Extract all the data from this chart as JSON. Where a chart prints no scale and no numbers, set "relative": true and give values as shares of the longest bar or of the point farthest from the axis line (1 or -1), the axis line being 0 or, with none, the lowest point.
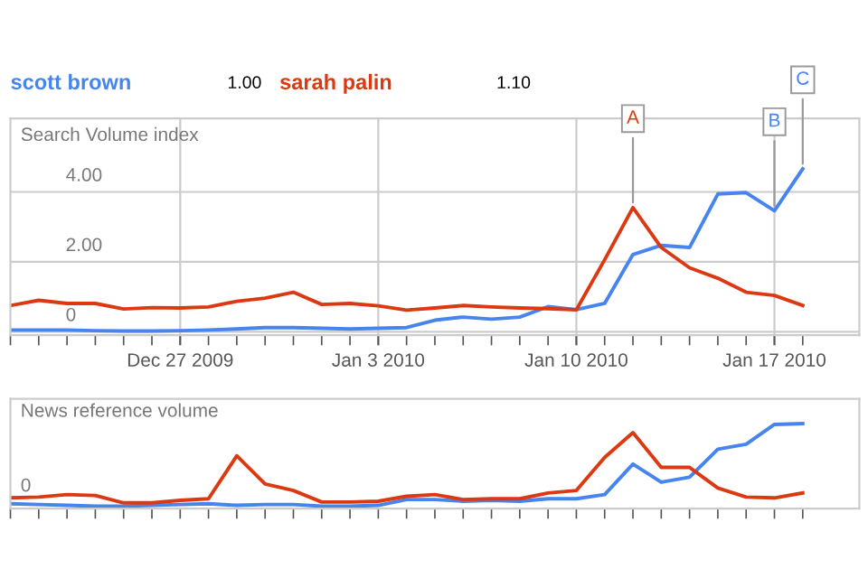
{
  "chart_data": [
    {
      "type": "line",
      "ylabel": "Search Volume index",
      "x": [
        "2009-12-21",
        "2009-12-22",
        "2009-12-23",
        "2009-12-24",
        "2009-12-25",
        "2009-12-26",
        "2009-12-27",
        "2009-12-28",
        "2009-12-29",
        "2009-12-30",
        "2009-12-31",
        "2010-01-01",
        "2010-01-02",
        "2010-01-03",
        "2010-01-04",
        "2010-01-05",
        "2010-01-06",
        "2010-01-07",
        "2010-01-08",
        "2010-01-09",
        "2010-01-10",
        "2010-01-11",
        "2010-01-12",
        "2010-01-13",
        "2010-01-14",
        "2010-01-15",
        "2010-01-16",
        "2010-01-17",
        "2010-01-18"
      ],
      "series": [
        {
          "name": "scott brown",
          "color": "#4684ee",
          "values": [
            0.05,
            0.05,
            0.05,
            0.03,
            0.02,
            0.02,
            0.03,
            0.05,
            0.08,
            0.12,
            0.12,
            0.1,
            0.08,
            0.1,
            0.12,
            0.33,
            0.42,
            0.36,
            0.42,
            0.72,
            0.63,
            0.81,
            2.21,
            2.47,
            2.41,
            3.94,
            3.98,
            3.46,
            4.66
          ]
        },
        {
          "name": "sarah palin",
          "color": "#dc3912",
          "values": [
            0.75,
            0.9,
            0.81,
            0.81,
            0.65,
            0.69,
            0.68,
            0.71,
            0.87,
            0.96,
            1.13,
            0.78,
            0.81,
            0.74,
            0.62,
            0.68,
            0.75,
            0.71,
            0.68,
            0.66,
            0.63,
            2.06,
            3.55,
            2.41,
            1.83,
            1.53,
            1.13,
            1.04,
            0.75
          ]
        }
      ],
      "annotations": [
        "1.00",
        "1.10",
        {
          "text": "A",
          "x": "2010-01-12",
          "y": 3.55
        },
        {
          "text": "B",
          "x": "2010-01-17",
          "y": 3.46
        },
        {
          "text": "C",
          "x": "2010-01-18",
          "y": 4.66
        }
      ],
      "xlim": [
        "2009-12-21",
        "2010-01-20"
      ],
      "xticks": [
        {
          "value": "2009-12-27",
          "label": "Dec 27 2009"
        },
        {
          "value": "2010-01-03",
          "label": "Jan 3 2010"
        },
        {
          "value": "2010-01-10",
          "label": "Jan 10 2010"
        },
        {
          "value": "2010-01-17",
          "label": "Jan 17 2010"
        }
      ],
      "ylim": [
        -0.1,
        6.1
      ],
      "yticks": [
        {
          "value": 0,
          "label": "0"
        },
        {
          "value": 2,
          "label": "2.00"
        },
        {
          "value": 4,
          "label": "4.00"
        }
      ],
      "grid": true,
      "legend": "top left",
      "marker": "none",
      "line_style": "solid"
    },
    {
      "type": "line",
      "ylabel": "News reference volume",
      "relative": true,
      "x": [
        "2009-12-21",
        "2009-12-22",
        "2009-12-23",
        "2009-12-24",
        "2009-12-25",
        "2009-12-26",
        "2009-12-27",
        "2009-12-28",
        "2009-12-29",
        "2009-12-30",
        "2009-12-31",
        "2010-01-01",
        "2010-01-02",
        "2010-01-03",
        "2010-01-04",
        "2010-01-05",
        "2010-01-06",
        "2010-01-07",
        "2010-01-08",
        "2010-01-09",
        "2010-01-10",
        "2010-01-11",
        "2010-01-12",
        "2010-01-13",
        "2010-01-14",
        "2010-01-15",
        "2010-01-16",
        "2010-01-17",
        "2010-01-18"
      ],
      "series": [
        {
          "color": "#4684ee",
          "values": [
            0.03,
            0.02,
            0.01,
            0,
            0,
            0.01,
            0.02,
            0.03,
            0.01,
            0.02,
            0.02,
            0,
            0,
            0.01,
            0.08,
            0.08,
            0.06,
            0.07,
            0.06,
            0.09,
            0.09,
            0.14,
            0.51,
            0.29,
            0.35,
            0.69,
            0.75,
            0.99,
            1.0
          ]
        },
        {
          "color": "#dc3912",
          "values": [
            0.1,
            0.11,
            0.14,
            0.13,
            0.04,
            0.04,
            0.07,
            0.09,
            0.61,
            0.27,
            0.19,
            0.05,
            0.05,
            0.06,
            0.12,
            0.14,
            0.08,
            0.09,
            0.09,
            0.16,
            0.19,
            0.59,
            0.89,
            0.47,
            0.47,
            0.22,
            0.11,
            0.1,
            0.16
          ]
        }
      ],
      "annotations": [
        "0"
      ],
      "xlim": [
        "2009-12-21",
        "2010-01-20"
      ],
      "grid": "x",
      "marker": "none",
      "line_style": "solid"
    }
  ]
}
